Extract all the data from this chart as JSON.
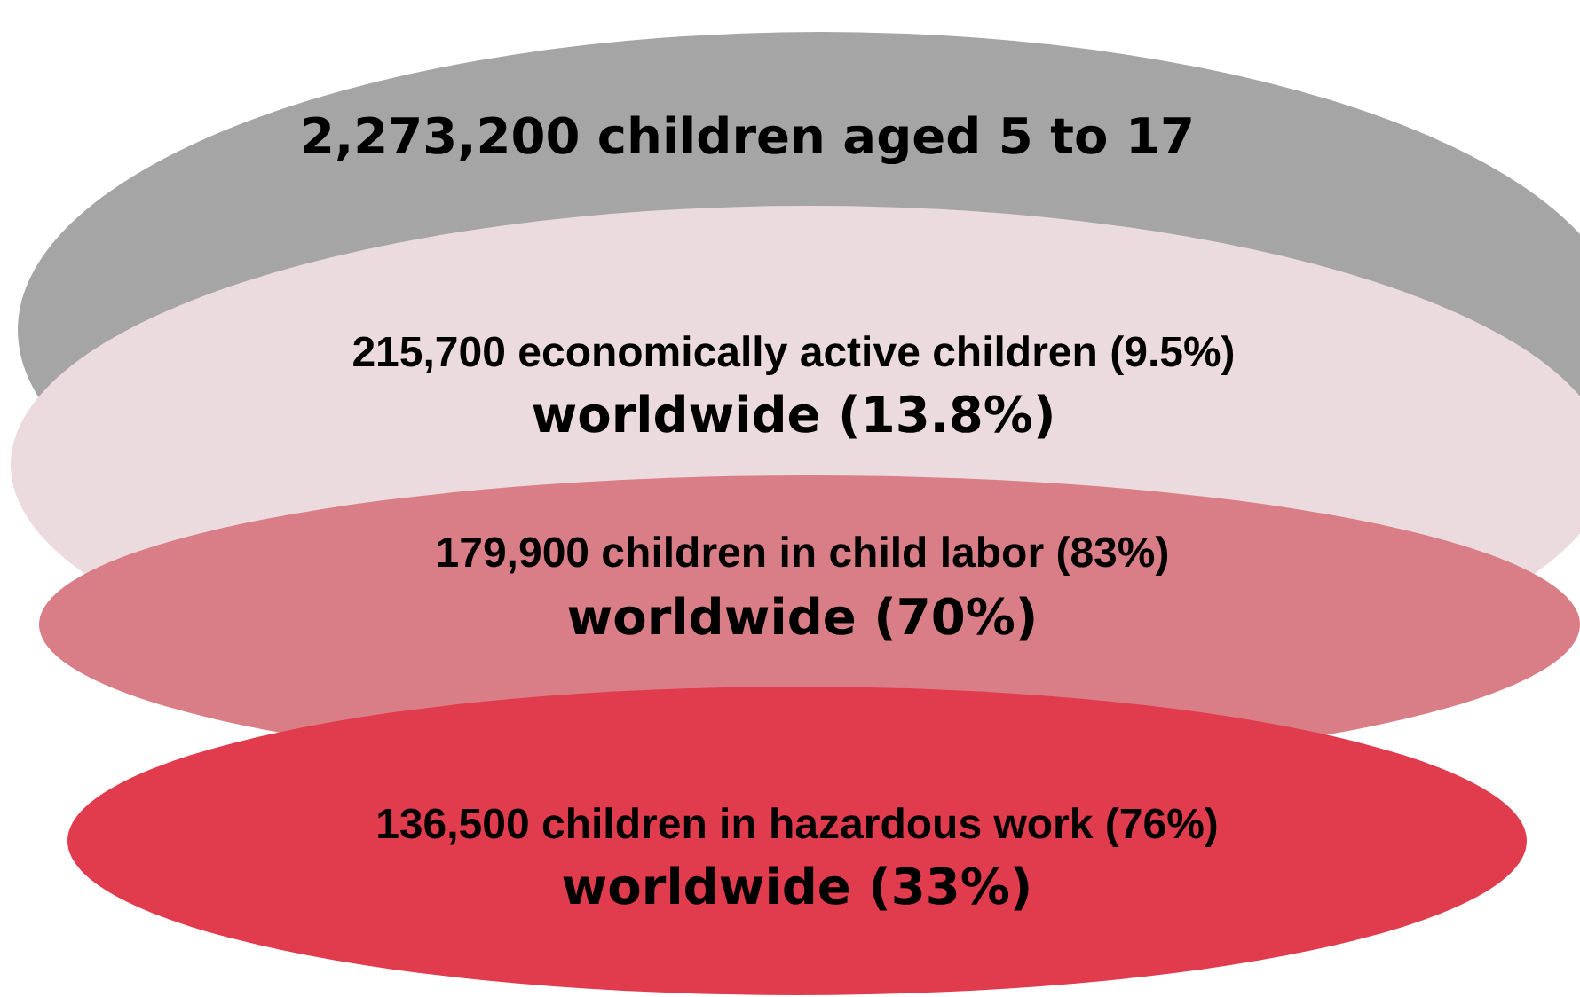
{
  "chart_data": {
    "type": "other",
    "categories": [
      "children aged 5 to 17",
      "economically active children (9.5%)",
      "children in child labor (83%)",
      "children in hazardous work (76%)"
    ],
    "values": [
      2273200,
      215700,
      179900,
      136500
    ],
    "value_labels": [
      "2,273,200",
      "215,700",
      "179,900",
      "136,500"
    ],
    "colors": [
      "#a5a5a5",
      "#ecdbde",
      "#d97d86",
      "#e13b4e"
    ],
    "annotations": [
      "worldwide (13.8%)",
      "worldwide (70%)",
      "worldwide (33%)"
    ]
  }
}
